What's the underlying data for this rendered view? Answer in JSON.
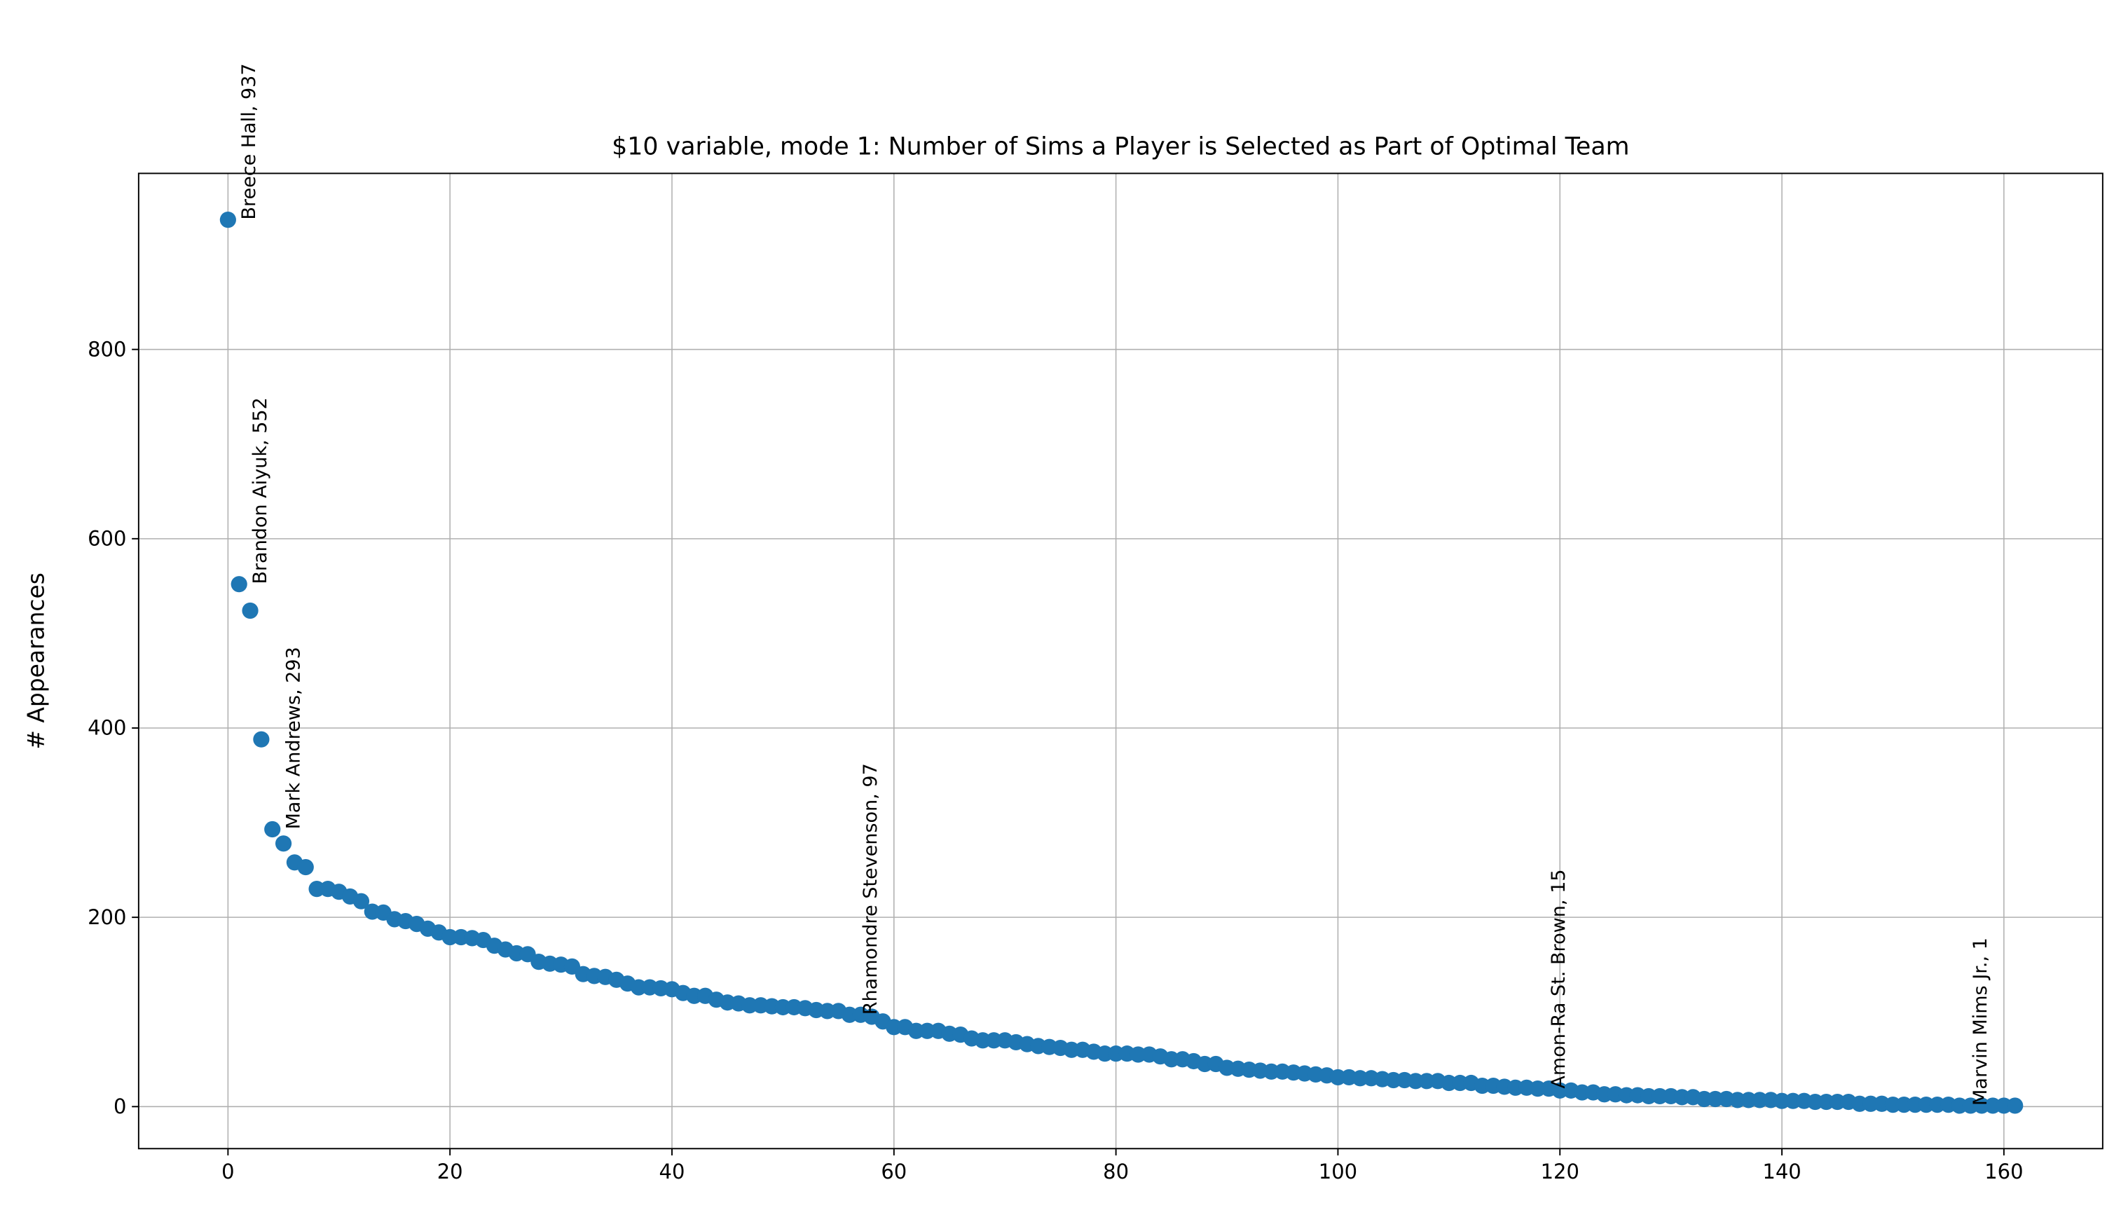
{
  "chart_data": {
    "type": "scatter",
    "title": "$10 variable, mode 1: Number of Sims a Player is Selected as Part of Optimal Team",
    "ylabel": "# Appearances",
    "x": [
      0,
      1,
      2,
      3,
      4,
      5,
      6,
      7,
      8,
      9,
      10,
      11,
      12,
      13,
      14,
      15,
      16,
      17,
      18,
      19,
      20,
      21,
      22,
      23,
      24,
      25,
      26,
      27,
      28,
      29,
      30,
      31,
      32,
      33,
      34,
      35,
      36,
      37,
      38,
      39,
      40,
      41,
      42,
      43,
      44,
      45,
      46,
      47,
      48,
      49,
      50,
      51,
      52,
      53,
      54,
      55,
      56,
      57,
      58,
      59,
      60,
      61,
      62,
      63,
      64,
      65,
      66,
      67,
      68,
      69,
      70,
      71,
      72,
      73,
      74,
      75,
      76,
      77,
      78,
      79,
      80,
      81,
      82,
      83,
      84,
      85,
      86,
      87,
      88,
      89,
      90,
      91,
      92,
      93,
      94,
      95,
      96,
      97,
      98,
      99,
      100,
      101,
      102,
      103,
      104,
      105,
      106,
      107,
      108,
      109,
      110,
      111,
      112,
      113,
      114,
      115,
      116,
      117,
      118,
      119,
      120,
      121,
      122,
      123,
      124,
      125,
      126,
      127,
      128,
      129,
      130,
      131,
      132,
      133,
      134,
      135,
      136,
      137,
      138,
      139,
      140,
      141,
      142,
      143,
      144,
      145,
      146,
      147,
      148,
      149,
      150,
      151,
      152,
      153,
      154,
      155,
      156,
      157,
      158,
      159,
      160,
      161
    ],
    "values": [
      937,
      552,
      524,
      388,
      293,
      278,
      258,
      253,
      230,
      230,
      227,
      222,
      217,
      206,
      205,
      198,
      196,
      193,
      188,
      184,
      179,
      179,
      178,
      176,
      170,
      166,
      162,
      161,
      153,
      151,
      150,
      148,
      140,
      138,
      137,
      134,
      130,
      126,
      126,
      125,
      124,
      120,
      117,
      117,
      113,
      110,
      109,
      107,
      107,
      106,
      105,
      105,
      104,
      102,
      101,
      101,
      97,
      97,
      95,
      90,
      84,
      84,
      80,
      80,
      80,
      77,
      76,
      72,
      70,
      70,
      70,
      68,
      66,
      64,
      63,
      62,
      60,
      60,
      58,
      56,
      56,
      56,
      55,
      55,
      53,
      50,
      50,
      48,
      45,
      45,
      41,
      40,
      39,
      38,
      37,
      37,
      36,
      35,
      34,
      33,
      31,
      31,
      30,
      30,
      29,
      28,
      28,
      27,
      27,
      27,
      25,
      25,
      25,
      22,
      22,
      21,
      20,
      20,
      19,
      19,
      17,
      17,
      15,
      15,
      13,
      13,
      12,
      12,
      11,
      11,
      11,
      10,
      10,
      8,
      8,
      8,
      7,
      7,
      7,
      7,
      6,
      6,
      6,
      5,
      5,
      5,
      5,
      3,
      3,
      3,
      2,
      2,
      2,
      2,
      2,
      2,
      1,
      1,
      1,
      1,
      1,
      1
    ],
    "labels": [
      "Breece Hall, 937",
      "Brandon Aiyuk, 552",
      null,
      null,
      "Mark Andrews, 293",
      null,
      null,
      null,
      null,
      null,
      null,
      null,
      null,
      null,
      null,
      null,
      null,
      null,
      null,
      null,
      null,
      null,
      null,
      null,
      null,
      null,
      null,
      null,
      null,
      null,
      null,
      null,
      null,
      null,
      null,
      null,
      null,
      null,
      null,
      null,
      null,
      null,
      null,
      null,
      null,
      null,
      null,
      null,
      null,
      null,
      null,
      null,
      null,
      null,
      null,
      null,
      "Rhamondre Stevenson, 97",
      null,
      null,
      null,
      null,
      null,
      null,
      null,
      null,
      null,
      null,
      null,
      null,
      null,
      null,
      null,
      null,
      null,
      null,
      null,
      null,
      null,
      null,
      null,
      null,
      null,
      null,
      null,
      null,
      null,
      null,
      null,
      null,
      null,
      null,
      null,
      null,
      null,
      null,
      null,
      null,
      null,
      null,
      null,
      null,
      null,
      null,
      null,
      null,
      null,
      null,
      null,
      null,
      null,
      null,
      null,
      null,
      null,
      null,
      null,
      null,
      null,
      "Amon-Ra St. Brown, 15",
      null,
      null,
      null,
      null,
      null,
      null,
      null,
      null,
      null,
      null,
      null,
      null,
      null,
      null,
      null,
      null,
      null,
      null,
      null,
      null,
      null,
      null,
      null,
      null,
      null,
      null,
      null,
      null,
      null,
      null,
      null,
      null,
      null,
      null,
      null,
      null,
      null,
      "Marvin Mims Jr., 1"
    ],
    "color": "#1f77b4",
    "xlim": [
      -8.05,
      168.9
    ],
    "ylim": [
      -44.4,
      986
    ],
    "xticks": [
      0,
      20,
      40,
      60,
      80,
      100,
      120,
      140,
      160
    ],
    "yticks": [
      0,
      200,
      400,
      600,
      800
    ],
    "grid": true
  }
}
